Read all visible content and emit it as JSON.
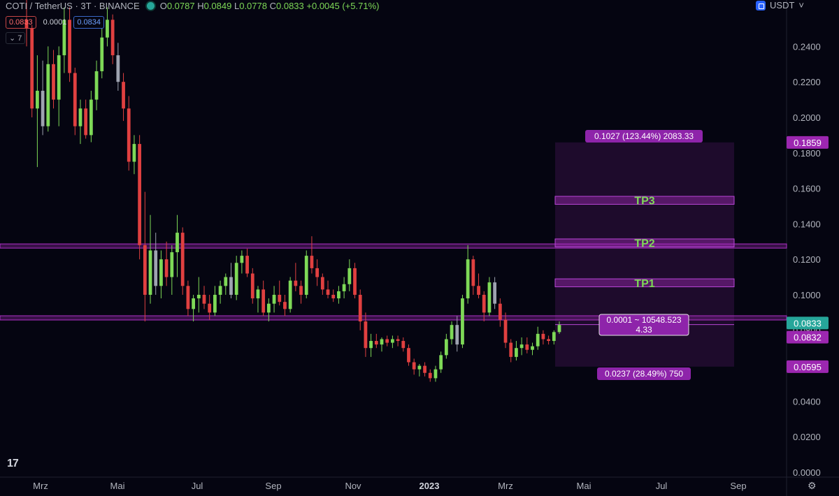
{
  "header": {
    "symbol": "COTI / TetherUS · 3T · BINANCE",
    "ohlc": {
      "o_label": "O",
      "o": "0.0787",
      "h_label": "H",
      "h": "0.0849",
      "l_label": "L",
      "l": "0.0778",
      "c_label": "C",
      "c": "0.0833",
      "change": "+0.0045 (+5.71%)"
    },
    "sell_price": "0.0833",
    "spread": "0.0001",
    "buy_price": "0.0834",
    "indicator_count": "7"
  },
  "currency": "USDT",
  "colors": {
    "background": "#050511",
    "up_candle": "#7ed957",
    "down_candle": "#e04040",
    "neutral_candle": "#9ea3b0",
    "purple": "#9c27b0",
    "price_label": "#26a69a"
  },
  "chart_data": {
    "type": "candlestick",
    "ylim": [
      0,
      0.26
    ],
    "yticks": [
      "0.2400",
      "0.2200",
      "0.2000",
      "0.1800",
      "0.1600",
      "0.1400",
      "0.1200",
      "0.1000",
      "0.0800",
      "0.0600",
      "0.0400",
      "0.0200",
      "0.0000"
    ],
    "ytick_values": [
      0.24,
      0.22,
      0.2,
      0.18,
      0.16,
      0.14,
      0.12,
      0.1,
      0.08,
      0.06,
      0.04,
      0.02,
      0.0
    ],
    "xticks": [
      "Mrz",
      "Mai",
      "Jul",
      "Sep",
      "Nov",
      "2023",
      "Mrz",
      "Mai",
      "Jul",
      "Sep"
    ],
    "xtick_bold_index": 5,
    "candles_ohlc": [
      [
        0.255,
        0.27,
        0.24,
        0.25
      ],
      [
        0.25,
        0.252,
        0.2,
        0.205
      ],
      [
        0.205,
        0.235,
        0.172,
        0.215
      ],
      [
        0.215,
        0.232,
        0.19,
        0.195
      ],
      [
        0.195,
        0.24,
        0.192,
        0.23
      ],
      [
        0.23,
        0.238,
        0.205,
        0.21
      ],
      [
        0.21,
        0.24,
        0.195,
        0.235
      ],
      [
        0.235,
        0.262,
        0.225,
        0.255
      ],
      [
        0.255,
        0.262,
        0.22,
        0.225
      ],
      [
        0.225,
        0.228,
        0.19,
        0.195
      ],
      [
        0.195,
        0.21,
        0.185,
        0.205
      ],
      [
        0.205,
        0.21,
        0.188,
        0.19
      ],
      [
        0.19,
        0.215,
        0.186,
        0.21
      ],
      [
        0.21,
        0.232,
        0.204,
        0.226
      ],
      [
        0.226,
        0.25,
        0.222,
        0.245
      ],
      [
        0.245,
        0.262,
        0.24,
        0.255
      ],
      [
        0.255,
        0.258,
        0.23,
        0.235
      ],
      [
        0.235,
        0.242,
        0.215,
        0.22
      ],
      [
        0.22,
        0.225,
        0.198,
        0.205
      ],
      [
        0.205,
        0.212,
        0.17,
        0.175
      ],
      [
        0.175,
        0.19,
        0.168,
        0.185
      ],
      [
        0.185,
        0.19,
        0.12,
        0.128
      ],
      [
        0.128,
        0.158,
        0.085,
        0.1
      ],
      [
        0.1,
        0.145,
        0.095,
        0.125
      ],
      [
        0.125,
        0.135,
        0.1,
        0.105
      ],
      [
        0.105,
        0.125,
        0.098,
        0.12
      ],
      [
        0.12,
        0.13,
        0.105,
        0.11
      ],
      [
        0.11,
        0.128,
        0.1,
        0.124
      ],
      [
        0.124,
        0.145,
        0.11,
        0.135
      ],
      [
        0.135,
        0.138,
        0.1,
        0.105
      ],
      [
        0.105,
        0.108,
        0.088,
        0.092
      ],
      [
        0.092,
        0.1,
        0.085,
        0.098
      ],
      [
        0.098,
        0.11,
        0.09,
        0.1
      ],
      [
        0.1,
        0.105,
        0.092,
        0.095
      ],
      [
        0.095,
        0.1,
        0.086,
        0.09
      ],
      [
        0.09,
        0.105,
        0.088,
        0.1
      ],
      [
        0.1,
        0.108,
        0.095,
        0.105
      ],
      [
        0.105,
        0.112,
        0.1,
        0.11
      ],
      [
        0.11,
        0.118,
        0.098,
        0.1
      ],
      [
        0.1,
        0.122,
        0.097,
        0.118
      ],
      [
        0.118,
        0.125,
        0.112,
        0.122
      ],
      [
        0.122,
        0.126,
        0.11,
        0.112
      ],
      [
        0.112,
        0.115,
        0.095,
        0.098
      ],
      [
        0.098,
        0.105,
        0.09,
        0.103
      ],
      [
        0.103,
        0.108,
        0.088,
        0.09
      ],
      [
        0.09,
        0.098,
        0.085,
        0.095
      ],
      [
        0.095,
        0.105,
        0.09,
        0.1
      ],
      [
        0.1,
        0.108,
        0.094,
        0.096
      ],
      [
        0.096,
        0.1,
        0.088,
        0.092
      ],
      [
        0.092,
        0.11,
        0.09,
        0.108
      ],
      [
        0.108,
        0.118,
        0.102,
        0.105
      ],
      [
        0.105,
        0.108,
        0.095,
        0.1
      ],
      [
        0.1,
        0.125,
        0.098,
        0.122
      ],
      [
        0.122,
        0.133,
        0.112,
        0.115
      ],
      [
        0.115,
        0.12,
        0.105,
        0.11
      ],
      [
        0.11,
        0.112,
        0.1,
        0.103
      ],
      [
        0.103,
        0.108,
        0.098,
        0.1
      ],
      [
        0.1,
        0.103,
        0.096,
        0.098
      ],
      [
        0.098,
        0.105,
        0.095,
        0.102
      ],
      [
        0.102,
        0.11,
        0.098,
        0.106
      ],
      [
        0.106,
        0.12,
        0.102,
        0.115
      ],
      [
        0.115,
        0.118,
        0.098,
        0.1
      ],
      [
        0.1,
        0.103,
        0.08,
        0.085
      ],
      [
        0.085,
        0.09,
        0.065,
        0.07
      ],
      [
        0.07,
        0.078,
        0.065,
        0.074
      ],
      [
        0.074,
        0.078,
        0.07,
        0.072
      ],
      [
        0.072,
        0.076,
        0.068,
        0.075
      ],
      [
        0.075,
        0.077,
        0.071,
        0.073
      ],
      [
        0.073,
        0.077,
        0.07,
        0.075
      ],
      [
        0.075,
        0.077,
        0.071,
        0.074
      ],
      [
        0.074,
        0.076,
        0.068,
        0.07
      ],
      [
        0.07,
        0.072,
        0.06,
        0.062
      ],
      [
        0.062,
        0.064,
        0.055,
        0.058
      ],
      [
        0.058,
        0.061,
        0.054,
        0.06
      ],
      [
        0.06,
        0.062,
        0.054,
        0.056
      ],
      [
        0.056,
        0.058,
        0.051,
        0.053
      ],
      [
        0.053,
        0.06,
        0.051,
        0.058
      ],
      [
        0.058,
        0.068,
        0.056,
        0.066
      ],
      [
        0.066,
        0.078,
        0.064,
        0.075
      ],
      [
        0.075,
        0.085,
        0.072,
        0.083
      ],
      [
        0.083,
        0.088,
        0.068,
        0.072
      ],
      [
        0.072,
        0.1,
        0.07,
        0.098
      ],
      [
        0.098,
        0.128,
        0.095,
        0.12
      ],
      [
        0.12,
        0.122,
        0.1,
        0.105
      ],
      [
        0.105,
        0.112,
        0.098,
        0.1
      ],
      [
        0.1,
        0.102,
        0.085,
        0.09
      ],
      [
        0.09,
        0.11,
        0.088,
        0.107
      ],
      [
        0.107,
        0.11,
        0.092,
        0.095
      ],
      [
        0.095,
        0.098,
        0.082,
        0.086
      ],
      [
        0.086,
        0.09,
        0.07,
        0.073
      ],
      [
        0.073,
        0.075,
        0.062,
        0.065
      ],
      [
        0.065,
        0.074,
        0.063,
        0.07
      ],
      [
        0.07,
        0.076,
        0.066,
        0.072
      ],
      [
        0.072,
        0.076,
        0.067,
        0.069
      ],
      [
        0.069,
        0.073,
        0.066,
        0.071
      ],
      [
        0.071,
        0.082,
        0.069,
        0.078
      ],
      [
        0.078,
        0.08,
        0.072,
        0.075
      ],
      [
        0.075,
        0.077,
        0.072,
        0.074
      ],
      [
        0.074,
        0.08,
        0.072,
        0.079
      ],
      [
        0.079,
        0.085,
        0.078,
        0.083
      ]
    ],
    "horizontal_lines": [
      0.1275,
      0.087
    ],
    "position_tool": {
      "entry": 0.0832,
      "target": 0.1859,
      "stop": 0.0595,
      "top_label": "0.1027 (123.44%) 2083.33",
      "middle_label_line1": "0.0001 ~ 10548.523",
      "middle_label_line2": "4.33",
      "bottom_label": "0.0237 (28.49%) 750",
      "zones": [
        {
          "label": "TP3",
          "low": 0.151,
          "high": 0.1555
        },
        {
          "label": "TP2",
          "low": 0.127,
          "high": 0.1315
        },
        {
          "label": "TP1",
          "low": 0.1045,
          "high": 0.109
        }
      ]
    },
    "price_labels": [
      {
        "text": "0.1859",
        "value": 0.1859,
        "color": "#9c27b0"
      },
      {
        "text": "0.0833",
        "value": 0.0833,
        "color": "#26a69a"
      },
      {
        "text": "0.0832",
        "value": 0.0832,
        "color": "#9c27b0"
      },
      {
        "text": "0.0595",
        "value": 0.0595,
        "color": "#9c27b0"
      }
    ]
  }
}
